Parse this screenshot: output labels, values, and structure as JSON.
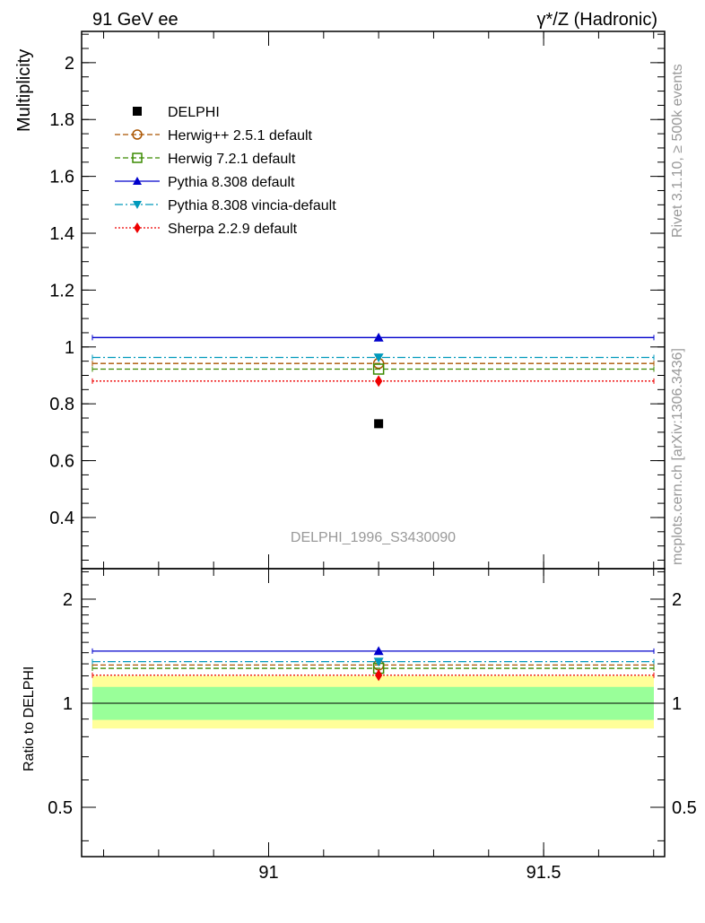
{
  "header": {
    "left": "91 GeV ee",
    "right": "γ*/Z (Hadronic)"
  },
  "side_labels": {
    "rivet": "Rivet 3.1.10, ≥ 500k events",
    "mcplots": "mcplots.cern.ch [arXiv:1306.3436]"
  },
  "colors": {
    "data": "#000000",
    "herwig_pp": "#aa5500",
    "herwig7": "#3a8a00",
    "pythia_default": "#0000cc",
    "pythia_vincia": "#0099bb",
    "sherpa": "#ee0000",
    "band_inner": "#99ff99",
    "band_outer": "#ffff99",
    "watermark": "#999999"
  },
  "chart_data": [
    {
      "type": "scatter",
      "panel": "main",
      "title": "",
      "watermark": "DELPHI_1996_S3430090",
      "ylabel": "Multiplicity",
      "xlabel": "",
      "xlim": [
        90.66,
        91.72
      ],
      "ylim": [
        0.22,
        2.11
      ],
      "x_bin": [
        90.66,
        91.72
      ],
      "x_point": 91.2,
      "yticks": [
        0.4,
        0.6,
        0.8,
        1,
        1.2,
        1.4,
        1.6,
        1.8,
        2
      ],
      "ytick_labels": [
        "0.4",
        "0.6",
        "0.8",
        "1",
        "1.2",
        "1.4",
        "1.6",
        "1.8",
        "2"
      ],
      "legend": {
        "position": "top-left"
      },
      "series": [
        {
          "key": "data",
          "name": "DELPHI",
          "value": 0.73,
          "marker": "square-filled",
          "line": "none"
        },
        {
          "key": "herwig_pp",
          "name": "Herwig++ 2.5.1 default",
          "value": 0.942,
          "marker": "circle-open",
          "line": "dashed"
        },
        {
          "key": "herwig7",
          "name": "Herwig 7.2.1 default",
          "value": 0.922,
          "marker": "square-open",
          "line": "dashed"
        },
        {
          "key": "pythia_default",
          "name": "Pythia 8.308 default",
          "value": 1.033,
          "marker": "triangle-up",
          "line": "solid"
        },
        {
          "key": "pythia_vincia",
          "name": "Pythia 8.308 vincia-default",
          "value": 0.963,
          "marker": "triangle-down",
          "line": "dashdot"
        },
        {
          "key": "sherpa",
          "name": "Sherpa 2.2.9 default",
          "value": 0.88,
          "marker": "diamond",
          "line": "dotted"
        }
      ]
    },
    {
      "type": "scatter",
      "panel": "ratio",
      "ylabel": "Ratio to DELPHI",
      "xlabel": "",
      "xlim": [
        90.66,
        91.72
      ],
      "ylim": [
        0.36,
        2.45
      ],
      "yscale": "log",
      "xticks": [
        91,
        91.5
      ],
      "xtick_labels": [
        "91",
        "91.5"
      ],
      "yticks": [
        0.5,
        1,
        2
      ],
      "ytick_labels": [
        "0.5",
        "1",
        "2"
      ],
      "reference": 1,
      "bands": {
        "inner": [
          0.895,
          1.115
        ],
        "outer": [
          0.845,
          1.2
        ]
      },
      "series": [
        {
          "key": "herwig_pp",
          "value": 1.29
        },
        {
          "key": "herwig7",
          "value": 1.262
        },
        {
          "key": "pythia_default",
          "value": 1.415
        },
        {
          "key": "pythia_vincia",
          "value": 1.319
        },
        {
          "key": "sherpa",
          "value": 1.205
        }
      ]
    }
  ]
}
